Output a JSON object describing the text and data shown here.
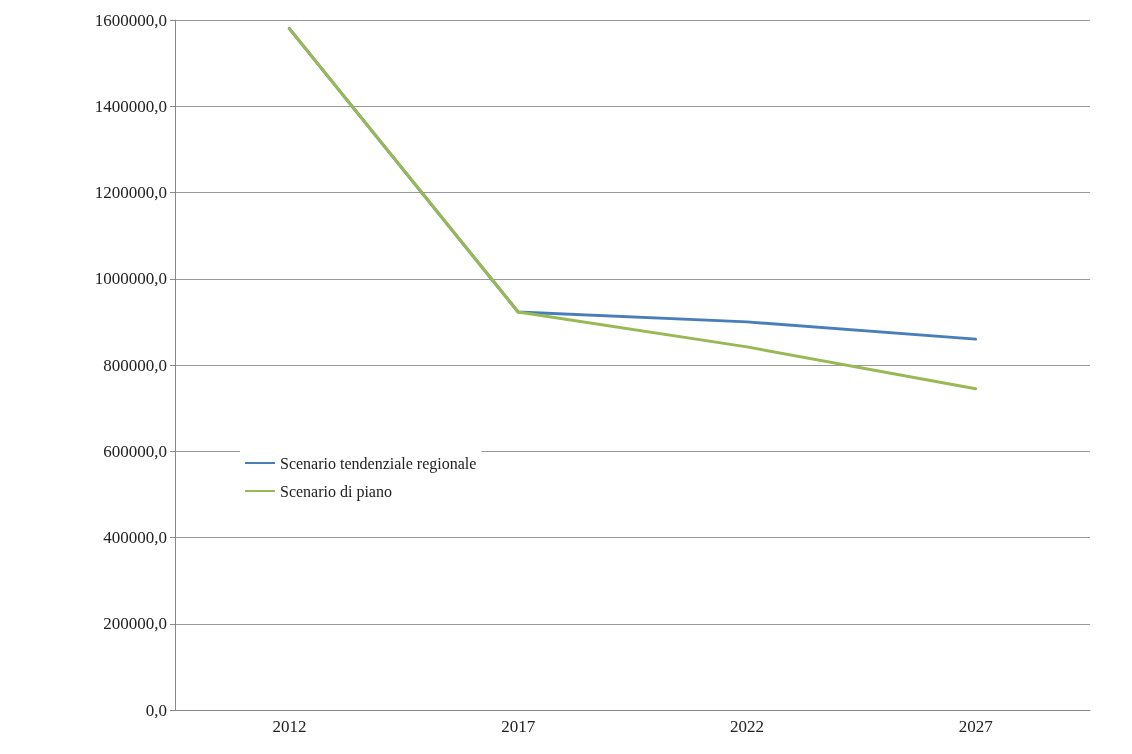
{
  "chart_data": {
    "type": "line",
    "categories": [
      "2012",
      "2017",
      "2022",
      "2027"
    ],
    "series": [
      {
        "name": "Scenario tendenziale regionale",
        "color": "#4a7ebb",
        "values": [
          1580000,
          923000,
          900000,
          860000
        ]
      },
      {
        "name": "Scenario di piano",
        "color": "#98b954",
        "values": [
          1580000,
          923000,
          842000,
          745000
        ]
      }
    ],
    "ylim": [
      0,
      1600000
    ],
    "yticks": [
      {
        "value": 0,
        "label": "0,0"
      },
      {
        "value": 200000,
        "label": "200000,0"
      },
      {
        "value": 400000,
        "label": "400000,0"
      },
      {
        "value": 600000,
        "label": "600000,0"
      },
      {
        "value": 800000,
        "label": "800000,0"
      },
      {
        "value": 1000000,
        "label": "1000000,0"
      },
      {
        "value": 1200000,
        "label": "1200000,0"
      },
      {
        "value": 1400000,
        "label": "1400000,0"
      },
      {
        "value": 1600000,
        "label": "1600000,0"
      }
    ],
    "grid": "y",
    "legend": "left",
    "marker": "none",
    "line_style": "solid"
  }
}
